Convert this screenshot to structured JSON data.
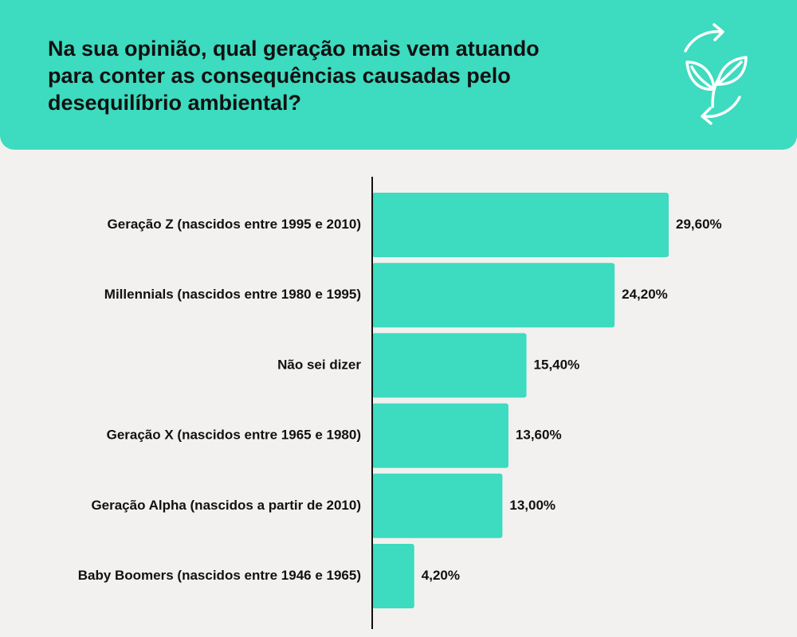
{
  "header": {
    "title": "Na sua opinião, qual geração mais vem atuando para conter as consequências causadas pelo desequilíbrio ambiental?",
    "icon": "leaf-recycle-icon"
  },
  "colors": {
    "accent": "#3ddbbf",
    "background": "#f2f1ef",
    "text": "#111111",
    "axis": "#111111"
  },
  "chart_data": {
    "type": "bar",
    "orientation": "horizontal",
    "categories": [
      "Geração Z (nascidos entre 1995 e 2010)",
      "Millennials (nascidos entre 1980 e 1995)",
      "Não sei dizer",
      "Geração X (nascidos entre 1965 e 1980)",
      "Geração Alpha (nascidos a partir de 2010)",
      "Baby Boomers (nascidos entre 1946 e 1965)"
    ],
    "values": [
      29.6,
      24.2,
      15.4,
      13.6,
      13.0,
      4.2
    ],
    "value_labels": [
      "29,60%",
      "24,20%",
      "15,40%",
      "13,60%",
      "13,00%",
      "4,20%"
    ],
    "title": "Na sua opinião, qual geração mais vem atuando para conter as consequências causadas pelo desequilíbrio ambiental?",
    "xlabel": "",
    "ylabel": "",
    "grid": false,
    "legend": "none",
    "xlim": [
      0,
      29.6
    ]
  }
}
